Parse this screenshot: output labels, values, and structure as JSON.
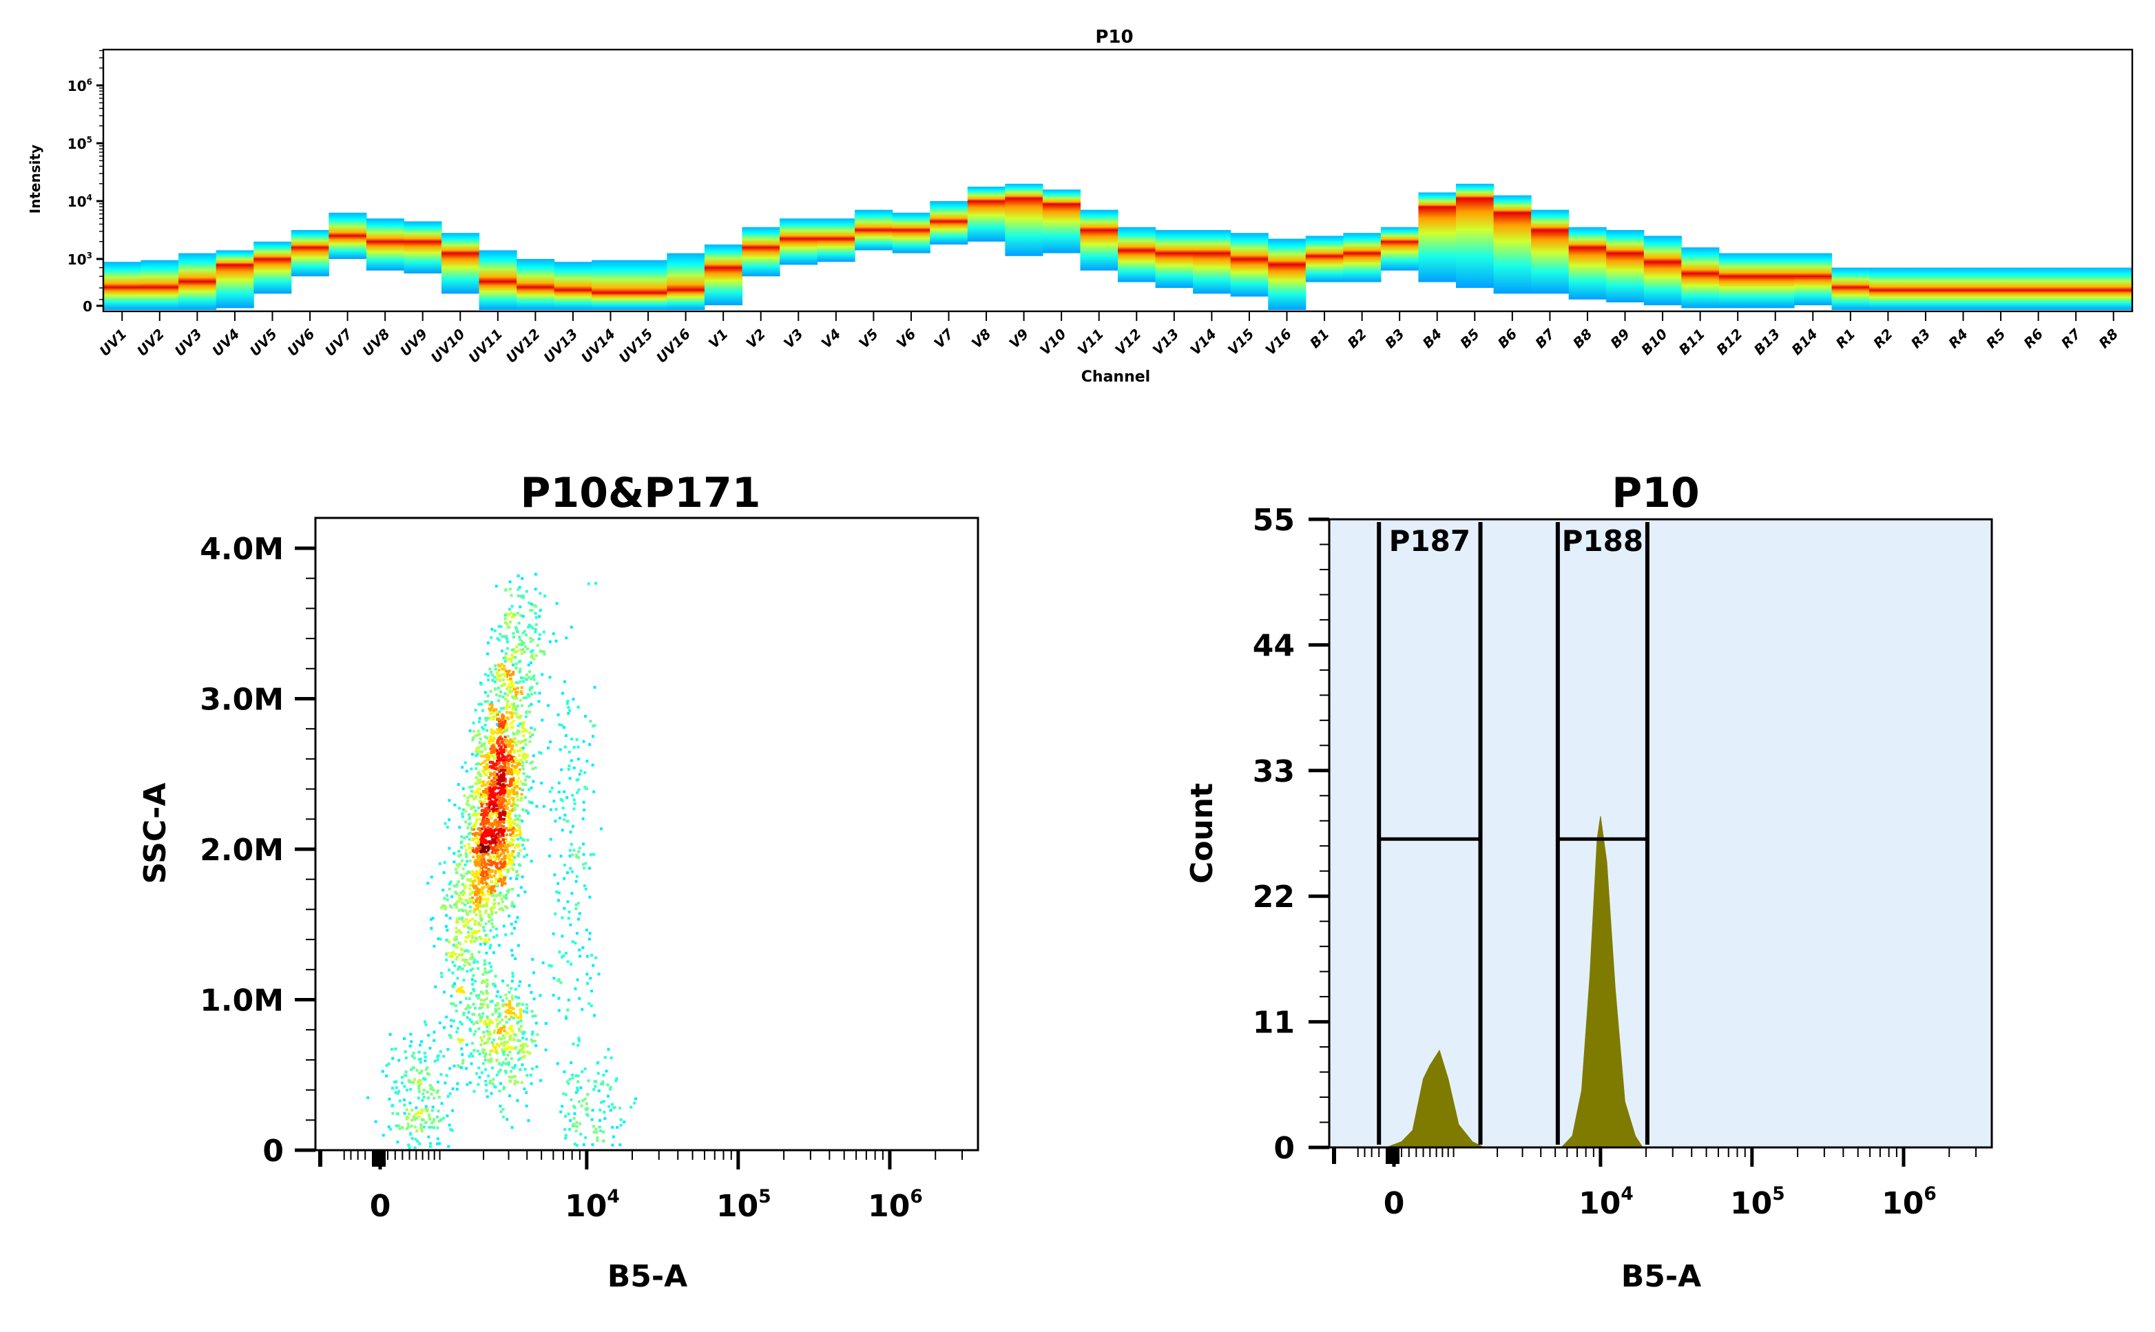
{
  "chart_data": [
    {
      "type": "heatmap",
      "title": "P10",
      "xlabel": "Channel",
      "ylabel": "Intensity",
      "yscale": "log",
      "yticks": [
        {
          "base": "0",
          "exp": ""
        },
        {
          "base": "10",
          "exp": "3"
        },
        {
          "base": "10",
          "exp": "4"
        },
        {
          "base": "10",
          "exp": "5"
        },
        {
          "base": "10",
          "exp": "6"
        }
      ],
      "ytick_exponents": [
        null,
        3,
        4,
        5,
        6
      ],
      "colormap": "jet",
      "channels": [
        "UV1",
        "UV2",
        "UV3",
        "UV4",
        "UV5",
        "UV6",
        "UV7",
        "UV8",
        "UV9",
        "UV10",
        "UV11",
        "UV12",
        "UV13",
        "UV14",
        "UV15",
        "UV16",
        "V1",
        "V2",
        "V3",
        "V4",
        "V5",
        "V6",
        "V7",
        "V8",
        "V9",
        "V10",
        "V11",
        "V12",
        "V13",
        "V14",
        "V15",
        "V16",
        "B1",
        "B2",
        "B3",
        "B4",
        "B5",
        "B6",
        "B7",
        "B8",
        "B9",
        "B10",
        "B11",
        "B12",
        "B13",
        "B14",
        "R1",
        "R2",
        "R3",
        "R4",
        "R5",
        "R6",
        "R7",
        "R8"
      ],
      "log10_intensity_high": [
        2.95,
        2.98,
        3.1,
        3.15,
        3.3,
        3.5,
        3.8,
        3.7,
        3.65,
        3.45,
        3.15,
        3.0,
        2.95,
        2.98,
        2.98,
        3.1,
        3.25,
        3.55,
        3.7,
        3.7,
        3.85,
        3.8,
        4.0,
        4.25,
        4.3,
        4.2,
        3.85,
        3.55,
        3.5,
        3.5,
        3.45,
        3.35,
        3.4,
        3.45,
        3.55,
        4.15,
        4.3,
        4.1,
        3.85,
        3.55,
        3.5,
        3.4,
        3.2,
        3.1,
        3.1,
        3.1,
        2.85,
        2.85,
        2.85,
        2.85,
        2.85,
        2.85,
        2.85,
        2.85
      ],
      "log10_intensity_peak": [
        2.5,
        2.5,
        2.6,
        2.9,
        3.0,
        3.2,
        3.4,
        3.3,
        3.3,
        3.1,
        2.6,
        2.5,
        2.45,
        2.4,
        2.4,
        2.45,
        2.85,
        3.2,
        3.35,
        3.35,
        3.5,
        3.5,
        3.65,
        4.0,
        4.05,
        3.95,
        3.5,
        3.15,
        3.1,
        3.1,
        3.0,
        2.9,
        3.05,
        3.1,
        3.3,
        3.9,
        4.05,
        3.8,
        3.5,
        3.2,
        3.1,
        2.95,
        2.75,
        2.7,
        2.7,
        2.7,
        2.5,
        2.45,
        2.45,
        2.45,
        2.45,
        2.45,
        2.45,
        2.45
      ],
      "log10_intensity_low": [
        2.1,
        2.1,
        2.1,
        2.15,
        2.4,
        2.7,
        3.0,
        2.8,
        2.75,
        2.4,
        2.1,
        2.1,
        2.1,
        2.1,
        2.1,
        2.1,
        2.2,
        2.7,
        2.9,
        2.95,
        3.15,
        3.1,
        3.25,
        3.3,
        3.05,
        3.1,
        2.8,
        2.6,
        2.5,
        2.4,
        2.35,
        2.1,
        2.6,
        2.6,
        2.8,
        2.6,
        2.5,
        2.4,
        2.4,
        2.3,
        2.25,
        2.2,
        2.15,
        2.15,
        2.15,
        2.2,
        2.1,
        2.1,
        2.1,
        2.1,
        2.1,
        2.1,
        2.1,
        2.1
      ]
    },
    {
      "type": "scatter",
      "title": "P10&P171",
      "xlabel": "B5-A",
      "ylabel": "SSC-A",
      "xscale": "biexponential",
      "xticks": [
        {
          "base": "0",
          "exp": ""
        },
        {
          "base": "10",
          "exp": "4"
        },
        {
          "base": "10",
          "exp": "5"
        },
        {
          "base": "10",
          "exp": "6"
        }
      ],
      "xtick_values": [
        0,
        10000,
        100000,
        1000000
      ],
      "yticks": [
        "0",
        "1.0M",
        "2.0M",
        "3.0M",
        "4.0M"
      ],
      "ytick_values": [
        0,
        1000000,
        2000000,
        3000000,
        4000000
      ],
      "colormap": "jet density",
      "clusters": [
        {
          "x": 1300,
          "y": 1400000,
          "n": 260
        },
        {
          "x": 2000,
          "y": 2000000,
          "n": 650
        },
        {
          "x": 2500,
          "y": 2300000,
          "n": 750
        },
        {
          "x": 3000,
          "y": 2800000,
          "n": 420
        },
        {
          "x": 3500,
          "y": 3400000,
          "n": 160
        },
        {
          "x": 2700,
          "y": 780000,
          "n": 380
        },
        {
          "x": 560,
          "y": 380000,
          "n": 220
        },
        {
          "x": 10900,
          "y": 280000,
          "n": 130
        },
        {
          "x": 7900,
          "y": 2000000,
          "n": 200
        }
      ]
    },
    {
      "type": "area",
      "title": "P10",
      "xlabel": "B5-A",
      "ylabel": "Count",
      "xscale": "biexponential",
      "xticks": [
        {
          "base": "0",
          "exp": ""
        },
        {
          "base": "10",
          "exp": "4"
        },
        {
          "base": "10",
          "exp": "5"
        },
        {
          "base": "10",
          "exp": "6"
        }
      ],
      "xtick_values": [
        0,
        10000,
        100000,
        1000000
      ],
      "yticks": [
        "0",
        "11",
        "22",
        "33",
        "44",
        "55"
      ],
      "ylim": [
        0,
        55
      ],
      "fill_color": "#7f7b00",
      "background_color": "#e3f0fb",
      "x": [
        -100,
        100,
        250,
        400,
        500,
        650,
        800,
        1000,
        1300,
        1600,
        5500,
        6500,
        7500,
        8500,
        9500,
        10000,
        11000,
        12500,
        14500,
        17000,
        19000
      ],
      "counts": [
        0,
        0.5,
        1.5,
        6,
        7.2,
        8.5,
        6,
        2,
        0.5,
        0,
        0,
        1,
        5,
        15,
        27,
        29,
        25,
        14,
        4,
        1,
        0
      ],
      "gates": [
        {
          "name": "P187",
          "x": [
            -200,
            1500
          ],
          "level": 27
        },
        {
          "name": "P188",
          "x": [
            5200,
            20400
          ],
          "level": 27
        }
      ]
    }
  ]
}
